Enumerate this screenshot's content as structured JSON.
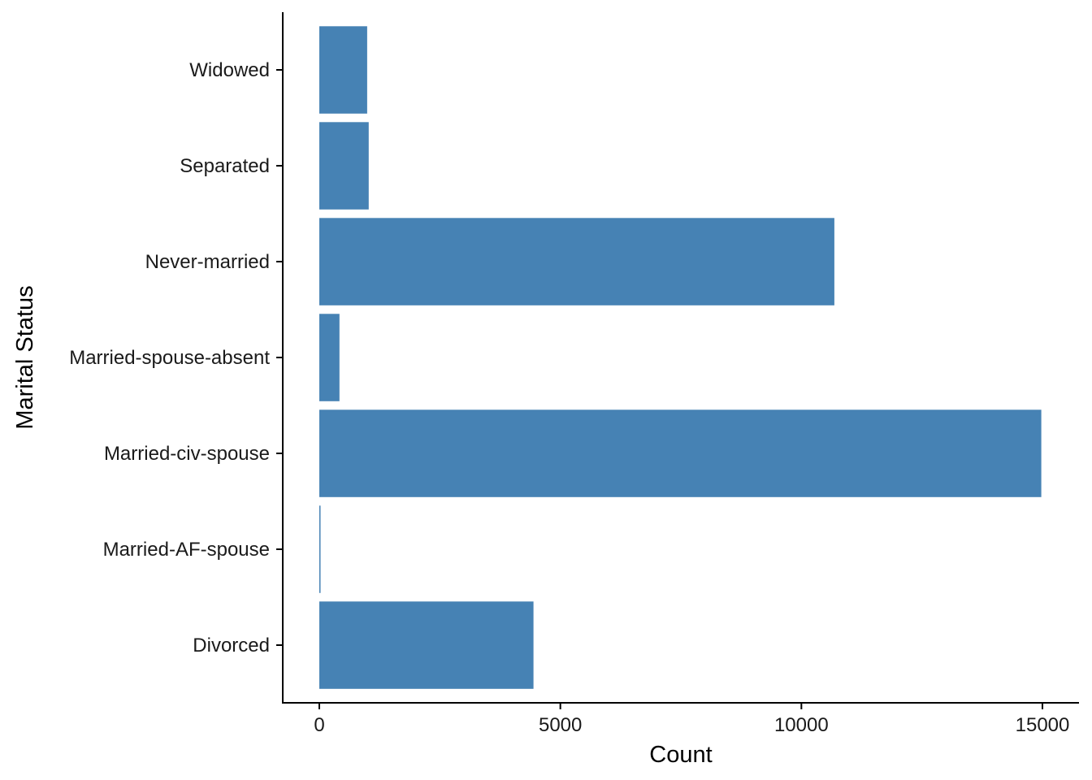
{
  "chart_data": {
    "type": "bar",
    "orientation": "horizontal",
    "categories": [
      "Divorced",
      "Married-AF-spouse",
      "Married-civ-spouse",
      "Married-spouse-absent",
      "Never-married",
      "Separated",
      "Widowed"
    ],
    "values": [
      4443,
      23,
      14976,
      418,
      10683,
      1025,
      993
    ],
    "xlabel": "Count",
    "ylabel": "Marital Status",
    "xlim": [
      0,
      15000
    ],
    "xticks": [
      0,
      5000,
      10000,
      15000
    ],
    "grid": false,
    "legend": "none",
    "colors": {
      "bar": "#4682B4",
      "axis": "#000000",
      "text": "#1a1a1a",
      "background": "#ffffff"
    }
  }
}
